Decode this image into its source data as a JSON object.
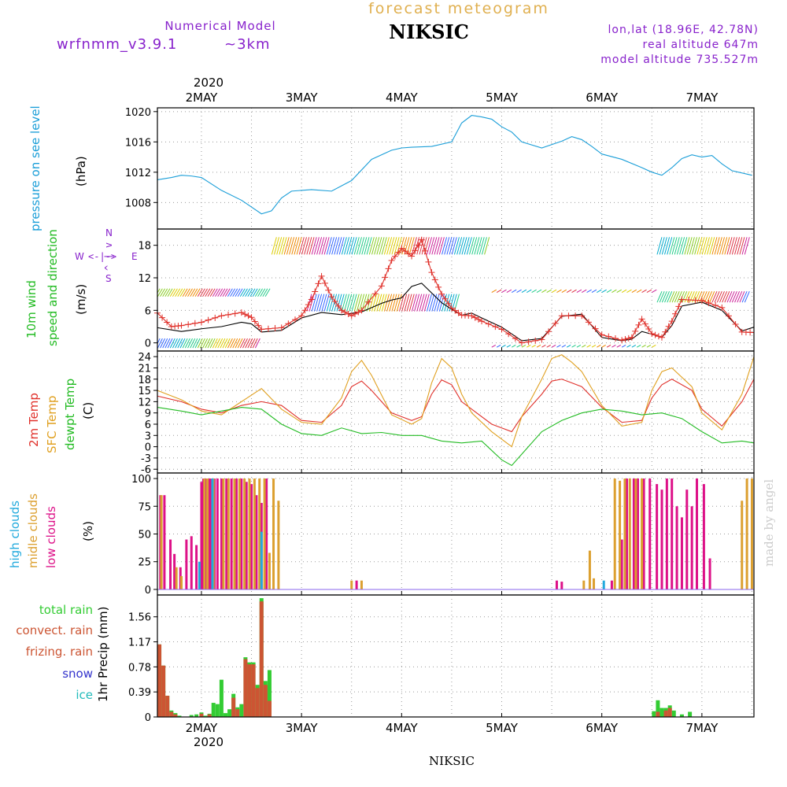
{
  "header": {
    "model_label": "Numerical Model",
    "model_name": "wrfnmm_v3.9.1",
    "resolution": "~3km",
    "main_title": "forecast meteogram",
    "station": "NIKSIC",
    "lonlat": "lon,lat (18.96E, 42.78N)",
    "real_altitude": "real altitude 647m",
    "model_altitude": "model altitude  735.527m",
    "footer_station": "NIKSIC",
    "credit": "made by angel"
  },
  "colors": {
    "pressure": "#1a9ed8",
    "wind_label": "#22bb22",
    "wind_speed": "#000000",
    "gust": "#e0302a",
    "temp2m": "#e0302a",
    "sfc": "#e0a020",
    "dew": "#22bb22",
    "high": "#22aadd",
    "mid": "#dca030",
    "low": "#dd1188",
    "compass": "#8822cc",
    "precip_total": "#33cc33",
    "precip_conv": "#cc5533",
    "snow": "#3333cc",
    "ice": "#22bbbb",
    "credit": "#cccccc"
  },
  "chart_data": [
    {
      "id": "pressure",
      "type": "line",
      "ylabel": "pressure on see level",
      "unit": "(hPa)",
      "ylim": [
        1004.5,
        1020.5
      ],
      "yticks": [
        1008,
        1012,
        1016,
        1020
      ],
      "x_unit": "day of May 2020",
      "xlim": [
        1.56,
        7.52
      ],
      "grid": true,
      "series": [
        {
          "x": [
            1.56,
            1.7,
            1.8,
            1.9,
            2.0,
            2.2,
            2.4,
            2.5,
            2.6,
            2.7,
            2.8,
            2.9,
            3.1,
            3.3,
            3.5,
            3.7,
            3.9,
            4.0,
            4.1,
            4.3,
            4.5,
            4.6,
            4.7,
            4.8,
            4.9,
            5.0,
            5.1,
            5.2,
            5.4,
            5.6,
            5.7,
            5.8,
            5.9,
            6.0,
            6.2,
            6.4,
            6.5,
            6.6,
            6.7,
            6.8,
            6.9,
            7.0,
            7.1,
            7.2,
            7.3,
            7.5
          ],
          "y": [
            1011,
            1011.3,
            1011.6,
            1011.5,
            1011.3,
            1009.6,
            1008.3,
            1007.4,
            1006.5,
            1006.9,
            1008.6,
            1009.5,
            1009.7,
            1009.5,
            1010.9,
            1013.7,
            1014.9,
            1015.2,
            1015.3,
            1015.4,
            1016.0,
            1018.5,
            1019.5,
            1019.3,
            1019.0,
            1018.0,
            1017.3,
            1016.0,
            1015.2,
            1016.1,
            1016.7,
            1016.3,
            1015.4,
            1014.4,
            1013.7,
            1012.6,
            1012.0,
            1011.6,
            1012.6,
            1013.8,
            1014.3,
            1014.0,
            1014.2,
            1013.1,
            1012.2,
            1011.6
          ]
        }
      ]
    },
    {
      "id": "wind",
      "type": "line",
      "ylabel_line1": "10m wind",
      "ylabel_line2": "speed and direction",
      "unit": "(m/s)",
      "compass": {
        "n": "N",
        "w": "W",
        "e": "E",
        "s": "S",
        "arrow_v": "^ | v",
        "arrow_h": "<-|->"
      },
      "ylim": [
        -1.5,
        21
      ],
      "yticks": [
        0,
        6,
        12,
        18
      ],
      "x_unit": "day of May 2020",
      "xlim": [
        1.56,
        7.52
      ],
      "grid": true,
      "series": [
        {
          "name": "speed",
          "x": [
            1.56,
            1.8,
            2.0,
            2.2,
            2.4,
            2.5,
            2.6,
            2.8,
            3.0,
            3.2,
            3.4,
            3.6,
            3.8,
            3.9,
            4.0,
            4.1,
            4.2,
            4.3,
            4.4,
            4.5,
            4.6,
            4.7,
            4.8,
            5.0,
            5.2,
            5.4,
            5.6,
            5.8,
            6.0,
            6.2,
            6.3,
            6.4,
            6.5,
            6.6,
            6.7,
            6.8,
            7.0,
            7.2,
            7.4,
            7.52
          ],
          "y": [
            2.8,
            2.1,
            2.6,
            3.0,
            3.8,
            3.5,
            2.0,
            2.3,
            4.6,
            5.6,
            5.2,
            5.7,
            7.3,
            7.9,
            8.3,
            10.4,
            11.0,
            9.2,
            7.4,
            6.2,
            5.1,
            5.5,
            4.6,
            2.9,
            0.4,
            0.8,
            4.9,
            5.3,
            1.0,
            0.4,
            0.7,
            2.1,
            1.6,
            1.0,
            3.2,
            6.8,
            7.5,
            6.0,
            2.2,
            2.9
          ]
        },
        {
          "name": "gust",
          "x": [
            1.56,
            1.7,
            1.8,
            2.0,
            2.2,
            2.4,
            2.5,
            2.6,
            2.8,
            3.0,
            3.1,
            3.2,
            3.3,
            3.4,
            3.5,
            3.6,
            3.8,
            3.9,
            4.0,
            4.1,
            4.2,
            4.3,
            4.4,
            4.5,
            4.6,
            4.7,
            4.8,
            5.0,
            5.2,
            5.4,
            5.6,
            5.8,
            6.0,
            6.2,
            6.3,
            6.4,
            6.5,
            6.6,
            6.7,
            6.8,
            7.0,
            7.2,
            7.4,
            7.52
          ],
          "y": [
            5.5,
            3.0,
            3.2,
            3.8,
            5.0,
            5.6,
            4.7,
            2.5,
            2.8,
            5.0,
            8.0,
            12.3,
            8.5,
            6.0,
            5.0,
            6.0,
            10.5,
            15.2,
            17.4,
            16.0,
            19.0,
            13.0,
            9.0,
            6.4,
            5.1,
            5.0,
            4.0,
            2.5,
            0.0,
            0.6,
            5.0,
            5.0,
            1.5,
            0.5,
            1.0,
            4.4,
            1.7,
            1.0,
            4.0,
            8.0,
            7.8,
            6.5,
            2.0,
            1.9
          ]
        }
      ]
    },
    {
      "id": "temperature",
      "type": "line",
      "ylabel_2m": "2m Temp",
      "ylabel_sfc": "SFC Temp",
      "ylabel_dew": "dewpt Temp",
      "unit": "(C)",
      "ylim": [
        -7,
        25.5
      ],
      "yticks": [
        -6,
        -3,
        0,
        3,
        6,
        9,
        12,
        15,
        18,
        21,
        24
      ],
      "x_unit": "day of May 2020",
      "xlim": [
        1.56,
        7.52
      ],
      "grid": true,
      "series": [
        {
          "name": "2m",
          "x": [
            1.56,
            1.8,
            2.0,
            2.2,
            2.4,
            2.6,
            2.8,
            3.0,
            3.2,
            3.4,
            3.5,
            3.6,
            3.7,
            3.9,
            4.1,
            4.2,
            4.3,
            4.4,
            4.5,
            4.6,
            4.7,
            4.9,
            5.0,
            5.1,
            5.2,
            5.4,
            5.5,
            5.6,
            5.7,
            5.8,
            6.0,
            6.2,
            6.4,
            6.5,
            6.6,
            6.7,
            6.9,
            7.0,
            7.2,
            7.4,
            7.52
          ],
          "y": [
            13.5,
            12.0,
            10.0,
            9.0,
            11.0,
            12.0,
            11.0,
            7.0,
            6.5,
            11.0,
            16.0,
            17.5,
            15.0,
            9.0,
            7.0,
            8.0,
            14.0,
            17.8,
            16.5,
            12.0,
            10.0,
            6.0,
            5.0,
            4.0,
            8.0,
            14.0,
            17.5,
            18.0,
            17.0,
            16.0,
            10.5,
            6.5,
            7.0,
            13.0,
            16.5,
            18.0,
            15.0,
            10.0,
            5.5,
            12.0,
            18.0
          ]
        },
        {
          "name": "sfc",
          "x": [
            1.56,
            1.8,
            2.0,
            2.2,
            2.4,
            2.6,
            2.8,
            3.0,
            3.2,
            3.4,
            3.5,
            3.6,
            3.7,
            3.9,
            4.1,
            4.2,
            4.3,
            4.4,
            4.5,
            4.6,
            4.7,
            4.9,
            5.0,
            5.1,
            5.2,
            5.4,
            5.5,
            5.6,
            5.7,
            5.8,
            6.0,
            6.2,
            6.4,
            6.5,
            6.6,
            6.7,
            6.9,
            7.0,
            7.2,
            7.4,
            7.52
          ],
          "y": [
            15.0,
            12.5,
            9.5,
            8.5,
            12.0,
            15.5,
            10.0,
            6.5,
            6.0,
            13.0,
            20.0,
            23.0,
            19.0,
            8.5,
            6.0,
            7.5,
            17.0,
            23.5,
            21.0,
            14.0,
            9.0,
            4.0,
            2.0,
            0.0,
            8.0,
            18.0,
            23.5,
            24.5,
            22.5,
            20.0,
            11.0,
            5.5,
            6.5,
            15.0,
            20.0,
            21.0,
            16.0,
            9.0,
            4.5,
            14.0,
            24.0
          ]
        },
        {
          "name": "dew",
          "x": [
            1.56,
            1.8,
            2.0,
            2.2,
            2.4,
            2.6,
            2.8,
            3.0,
            3.2,
            3.4,
            3.6,
            3.8,
            4.0,
            4.2,
            4.4,
            4.6,
            4.8,
            5.0,
            5.1,
            5.2,
            5.4,
            5.6,
            5.8,
            6.0,
            6.2,
            6.4,
            6.6,
            6.8,
            7.0,
            7.2,
            7.4,
            7.52
          ],
          "y": [
            10.5,
            9.5,
            8.5,
            9.5,
            10.5,
            10.0,
            6.0,
            3.5,
            3.0,
            5.0,
            3.5,
            3.8,
            3.0,
            3.0,
            1.5,
            1.0,
            1.5,
            -3.5,
            -5.0,
            -2.0,
            4.0,
            7.0,
            9.0,
            10.0,
            9.5,
            8.5,
            9.0,
            7.5,
            4.0,
            1.0,
            1.5,
            1.0
          ]
        }
      ]
    },
    {
      "id": "clouds",
      "type": "bar",
      "ylabel_high": "high  clouds",
      "ylabel_mid": "midle clouds",
      "ylabel_low": "low   clouds",
      "unit": "(%)",
      "ylim": [
        -5,
        105
      ],
      "yticks": [
        0,
        25,
        50,
        75,
        100
      ],
      "x_unit": "day of May 2020",
      "xlim": [
        1.56,
        7.52
      ],
      "grid": true,
      "series": [
        {
          "name": "low",
          "x": [
            1.59,
            1.63,
            1.69,
            1.73,
            1.79,
            1.85,
            1.9,
            1.95,
            2.0,
            2.02,
            2.05,
            2.08,
            2.1,
            2.13,
            2.16,
            2.2,
            2.25,
            2.3,
            2.35,
            2.4,
            2.45,
            2.5,
            2.55,
            2.6,
            2.65,
            3.55,
            5.55,
            5.6,
            6.1,
            6.2,
            6.25,
            6.32,
            6.36,
            6.42,
            6.48,
            6.55,
            6.6,
            6.65,
            6.7,
            6.75,
            6.8,
            6.85,
            6.9,
            6.95,
            7.02,
            7.08
          ],
          "y": [
            85,
            85,
            45,
            32,
            20,
            45,
            48,
            40,
            97,
            100,
            100,
            100,
            100,
            100,
            100,
            100,
            100,
            100,
            100,
            100,
            97,
            95,
            85,
            78,
            100,
            8,
            8,
            7,
            8,
            45,
            100,
            100,
            100,
            100,
            100,
            95,
            90,
            100,
            100,
            75,
            65,
            90,
            75,
            100,
            95,
            28
          ]
        },
        {
          "name": "mid",
          "x": [
            1.6,
            1.75,
            1.8,
            2.03,
            2.06,
            2.12,
            2.22,
            2.27,
            2.33,
            2.38,
            2.43,
            2.48,
            2.53,
            2.58,
            2.63,
            2.68,
            2.72,
            2.77,
            3.5,
            3.6,
            5.82,
            5.88,
            5.92,
            6.13,
            6.18,
            6.23,
            6.28,
            6.34,
            6.4,
            7.4,
            7.45,
            7.5
          ],
          "y": [
            85,
            20,
            12,
            100,
            100,
            100,
            100,
            100,
            100,
            100,
            100,
            100,
            100,
            100,
            100,
            33,
            100,
            80,
            8,
            8,
            8,
            35,
            10,
            100,
            98,
            100,
            100,
            100,
            100,
            80,
            100,
            100
          ]
        },
        {
          "name": "high",
          "x": [
            1.98,
            2.11,
            2.6,
            6.02
          ],
          "y": [
            25,
            100,
            52,
            8
          ]
        }
      ]
    },
    {
      "id": "precip",
      "type": "bar",
      "label_total": "total      rain",
      "label_conv": "convect. rain",
      "label_frz": "frizing.  rain",
      "label_snow": "snow",
      "label_ice": "ice",
      "unit": "1hr Precip (mm)",
      "ylim": [
        0,
        1.9
      ],
      "yticks": [
        0,
        0.39,
        0.78,
        1.17,
        1.56
      ],
      "ytick_labels": [
        "0",
        "0.39",
        "0.78",
        "1.17",
        "1.56"
      ],
      "x_unit": "day of May 2020",
      "xlim": [
        1.56,
        7.52
      ],
      "grid": true,
      "series": [
        {
          "name": "total",
          "x": [
            1.58,
            1.62,
            1.66,
            1.7,
            1.74,
            1.78,
            1.9,
            1.95,
            2.0,
            2.04,
            2.08,
            2.12,
            2.16,
            2.2,
            2.24,
            2.28,
            2.32,
            2.36,
            2.4,
            2.44,
            2.48,
            2.52,
            2.56,
            2.6,
            2.64,
            2.68,
            2.72,
            6.52,
            6.56,
            6.6,
            6.64,
            6.68,
            6.72,
            6.8,
            6.88
          ],
          "y": [
            1.13,
            0.8,
            0.33,
            0.1,
            0.06,
            0.02,
            0.03,
            0.04,
            0.07,
            0.02,
            0.05,
            0.22,
            0.2,
            0.58,
            0.06,
            0.12,
            0.36,
            0.15,
            0.2,
            0.93,
            0.85,
            0.85,
            0.5,
            1.85,
            0.56,
            0.73,
            0.0,
            0.09,
            0.26,
            0.14,
            0.14,
            0.18,
            0.1,
            0.04,
            0.08
          ]
        },
        {
          "name": "convect",
          "x": [
            1.58,
            1.62,
            1.66,
            1.7,
            1.74,
            2.0,
            2.08,
            2.32,
            2.36,
            2.44,
            2.48,
            2.52,
            2.56,
            2.6,
            2.64,
            2.68,
            6.56,
            6.64,
            6.68
          ],
          "y": [
            1.13,
            0.8,
            0.33,
            0.08,
            0.04,
            0.05,
            0.04,
            0.3,
            0.12,
            0.9,
            0.82,
            0.82,
            0.45,
            1.8,
            0.5,
            0.25,
            0.08,
            0.1,
            0.14
          ]
        }
      ]
    }
  ],
  "x_axis": {
    "year_label": "2020",
    "days": [
      {
        "x": 2,
        "label": "2MAY"
      },
      {
        "x": 3,
        "label": "3MAY"
      },
      {
        "x": 4,
        "label": "4MAY"
      },
      {
        "x": 5,
        "label": "5MAY"
      },
      {
        "x": 6,
        "label": "6MAY"
      },
      {
        "x": 7,
        "label": "7MAY"
      }
    ]
  }
}
